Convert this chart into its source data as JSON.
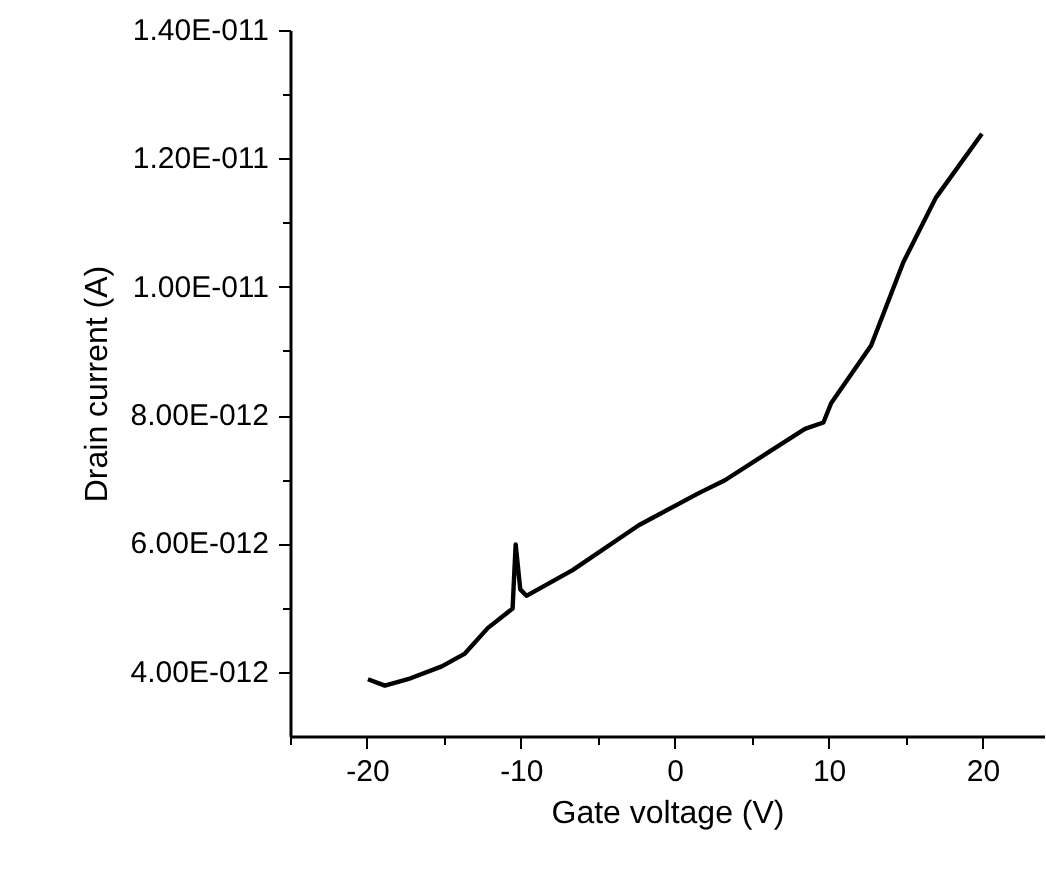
{
  "chart_data": {
    "type": "line",
    "xlabel": "Gate voltage (V)",
    "ylabel": "Drain current (A)",
    "x": [
      -20,
      -18.9,
      -17.4,
      -15.2,
      -13.7,
      -12.2,
      -10.6,
      -10.4,
      -10.1,
      -9.7,
      -6.7,
      -2.4,
      1.5,
      3.2,
      8.4,
      9.6,
      10.1,
      12.7,
      14.8,
      16.9,
      19.9
    ],
    "series": [
      {
        "color": "#000000",
        "values": [
          3.9e-12,
          3.8e-12,
          3.9e-12,
          4.1e-12,
          4.3e-12,
          4.7e-12,
          5e-12,
          6e-12,
          5.3e-12,
          5.2e-12,
          5.6e-12,
          6.3e-12,
          6.8e-12,
          7e-12,
          7.8e-12,
          7.9e-12,
          8.2e-12,
          9.1e-12,
          1.04e-11,
          1.14e-11,
          1.24e-11
        ]
      }
    ],
    "xlim": [
      -25,
      24
    ],
    "xticks": [
      -20,
      -10,
      0,
      10,
      20
    ],
    "ylim": [
      3e-12,
      1.4e-11
    ],
    "yticks": [
      {
        "value": 4e-12,
        "label": "4.00E-012"
      },
      {
        "value": 6e-12,
        "label": "6.00E-012"
      },
      {
        "value": 8e-12,
        "label": "8.00E-012"
      },
      {
        "value": 1e-11,
        "label": "1.00E-011"
      },
      {
        "value": 1.2e-11,
        "label": "1.20E-011"
      },
      {
        "value": 1.4e-11,
        "label": "1.40E-011"
      }
    ],
    "grid": false,
    "marker": "none",
    "line_style": "solid"
  }
}
